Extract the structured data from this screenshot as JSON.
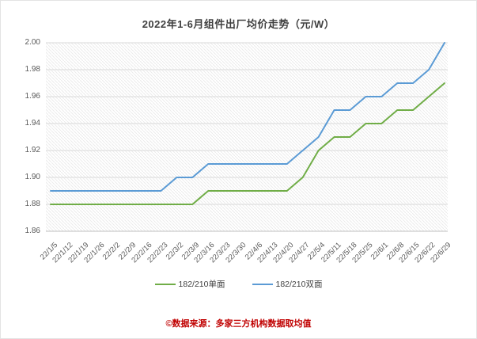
{
  "title": "2022年1-6月组件出厂均价走势（元/W）",
  "footer": "©数据来源：多家三方机构数据取均值",
  "colors": {
    "series_single": "#70ad47",
    "series_double": "#5b9bd5",
    "gridline": "#d9d9d9",
    "axis_line": "#bfbfbf",
    "hatch": "#ebebeb",
    "title_text": "#3f3f3f",
    "tick_text": "#595959",
    "footer_text": "#c00000"
  },
  "chart_data": {
    "type": "line",
    "title": "2022年1-6月组件出厂均价走势（元/W）",
    "xlabel": "",
    "ylabel": "",
    "categories": [
      "22/1/5",
      "22/1/12",
      "22/1/19",
      "22/1/26",
      "22/2/2",
      "22/2/9",
      "22/2/16",
      "22/2/23",
      "22/3/2",
      "22/3/9",
      "22/3/16",
      "22/3/23",
      "22/3/30",
      "22/4/6",
      "22/4/13",
      "22/4/20",
      "22/4/27",
      "22/5/4",
      "22/5/11",
      "22/5/18",
      "22/5/25",
      "22/6/1",
      "22/6/8",
      "22/6/15",
      "22/6/22",
      "22/6/29"
    ],
    "series": [
      {
        "name": "182/210单面",
        "color": "#70ad47",
        "values": [
          1.88,
          1.88,
          1.88,
          1.88,
          1.88,
          1.88,
          1.88,
          1.88,
          1.88,
          1.88,
          1.89,
          1.89,
          1.89,
          1.89,
          1.89,
          1.89,
          1.9,
          1.92,
          1.93,
          1.93,
          1.94,
          1.94,
          1.95,
          1.95,
          1.96,
          1.97
        ]
      },
      {
        "name": "182/210双面",
        "color": "#5b9bd5",
        "values": [
          1.89,
          1.89,
          1.89,
          1.89,
          1.89,
          1.89,
          1.89,
          1.89,
          1.9,
          1.9,
          1.91,
          1.91,
          1.91,
          1.91,
          1.91,
          1.91,
          1.92,
          1.93,
          1.95,
          1.95,
          1.96,
          1.96,
          1.97,
          1.97,
          1.98,
          2.0
        ]
      }
    ],
    "ylim": [
      1.86,
      2.0
    ],
    "yticks": [
      1.86,
      1.88,
      1.9,
      1.92,
      1.94,
      1.96,
      1.98,
      2.0
    ],
    "ytick_format": "0.00",
    "grid": "horizontal",
    "legend_position": "bottom",
    "plot_background": "diagonal-hatch"
  }
}
